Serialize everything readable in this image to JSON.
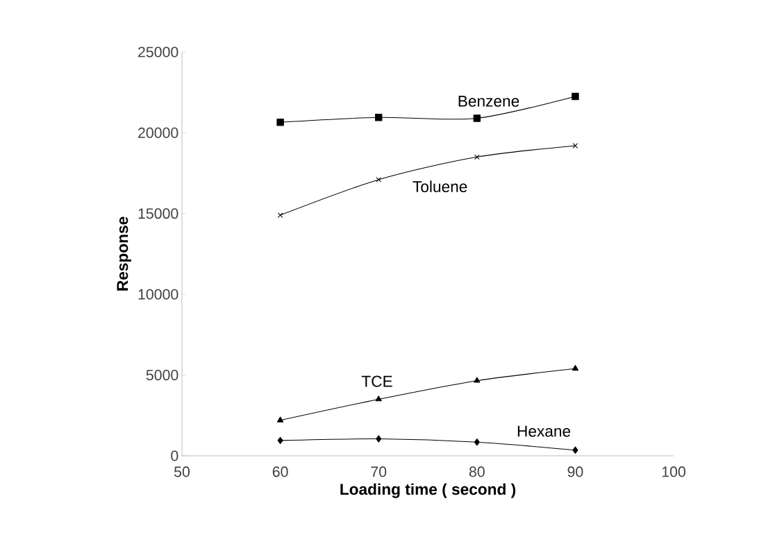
{
  "chart_data": {
    "type": "line",
    "xlabel": "Loading time ( second )",
    "ylabel": "Response",
    "x": [
      60,
      70,
      80,
      90
    ],
    "series": [
      {
        "name": "Benzene",
        "color": "#000000",
        "marker": "square",
        "values": [
          20650,
          20950,
          20900,
          22250
        ]
      },
      {
        "name": "Toluene",
        "color": "#000000",
        "marker": "cross",
        "values": [
          14900,
          17100,
          18500,
          19200
        ]
      },
      {
        "name": "TCE",
        "color": "#000000",
        "marker": "triangle",
        "values": [
          2200,
          3500,
          4650,
          5400
        ]
      },
      {
        "name": "Hexane",
        "color": "#000000",
        "marker": "diamond",
        "values": [
          950,
          1050,
          850,
          350
        ]
      }
    ],
    "xlim": [
      50,
      100
    ],
    "ylim": [
      0,
      25000
    ],
    "xticks": [
      50,
      60,
      70,
      80,
      90,
      100
    ],
    "yticks": [
      0,
      5000,
      10000,
      15000,
      20000,
      25000
    ],
    "grid": false
  }
}
